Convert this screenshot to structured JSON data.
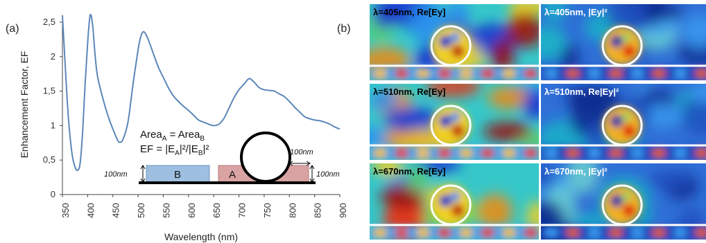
{
  "panel_a_label": "(a)",
  "panel_b_label": "(b)",
  "inset": {
    "area_line_prefix": "Area",
    "area_sub_a": "A",
    "area_equals": " = Area",
    "area_sub_b": "B",
    "ef_line_prefix": "EF = |E",
    "ef_sub_a": "A",
    "ef_mid": "|²/|E",
    "ef_sub_b": "B",
    "ef_end": "|²",
    "box_b_label": "B",
    "box_a_label": "A",
    "dim_left": "100nm",
    "dim_right": "100nm",
    "dim_top": "100nm"
  },
  "chart_data": {
    "type": "line",
    "xlabel": "Wavelength (nm)",
    "ylabel": "Enhancement Factor, EF",
    "xlim": [
      350,
      900
    ],
    "ylim": [
      0,
      2.6
    ],
    "x_ticks": [
      "350",
      "400",
      "450",
      "500",
      "550",
      "600",
      "650",
      "700",
      "750",
      "800",
      "850",
      "900"
    ],
    "y_ticks": [
      "0",
      "0,5",
      "1",
      "1,5",
      "2",
      "2,5"
    ],
    "y_tick_values": [
      0,
      0.5,
      1,
      1.5,
      2,
      2.5
    ],
    "grid": false,
    "color": "#5b86b8",
    "series": [
      {
        "x": [
          350,
          355,
          360,
          365,
          370,
          375,
          380,
          385,
          390,
          395,
          400,
          405,
          410,
          415,
          420,
          430,
          440,
          450,
          460,
          465,
          470,
          480,
          490,
          500,
          505,
          510,
          515,
          520,
          530,
          540,
          550,
          560,
          570,
          580,
          590,
          600,
          610,
          620,
          630,
          640,
          650,
          660,
          670,
          680,
          690,
          700,
          710,
          720,
          730,
          740,
          750,
          760,
          770,
          780,
          790,
          800,
          810,
          820,
          830,
          840,
          850,
          860,
          870,
          880,
          890,
          900
        ],
        "y": [
          2.6,
          1.95,
          1.3,
          0.85,
          0.55,
          0.4,
          0.35,
          0.45,
          0.9,
          1.6,
          2.2,
          2.6,
          2.45,
          2.0,
          1.7,
          1.4,
          1.15,
          0.95,
          0.78,
          0.76,
          0.8,
          1.05,
          1.6,
          2.1,
          2.28,
          2.36,
          2.33,
          2.25,
          2.05,
          1.85,
          1.7,
          1.55,
          1.43,
          1.35,
          1.28,
          1.22,
          1.15,
          1.08,
          1.05,
          1.02,
          1.0,
          1.02,
          1.1,
          1.25,
          1.4,
          1.52,
          1.6,
          1.68,
          1.63,
          1.55,
          1.52,
          1.51,
          1.5,
          1.46,
          1.42,
          1.35,
          1.27,
          1.2,
          1.13,
          1.1,
          1.08,
          1.07,
          1.05,
          1.02,
          0.98,
          0.95
        ]
      }
    ]
  },
  "field_maps": [
    {
      "label": "λ=405nm, Re[Ey]",
      "kind": "re"
    },
    {
      "label": "λ=405nm, |Ey|²",
      "kind": "abs"
    },
    {
      "label": "λ=510nm, Re[Ey]",
      "kind": "re"
    },
    {
      "label": "λ=510nm, Re|Ey|²",
      "kind": "abs"
    },
    {
      "label": "λ=670nm, Re[Ey]",
      "kind": "re"
    },
    {
      "label": "λ=670nm, |Ey|²",
      "kind": "abs"
    }
  ]
}
